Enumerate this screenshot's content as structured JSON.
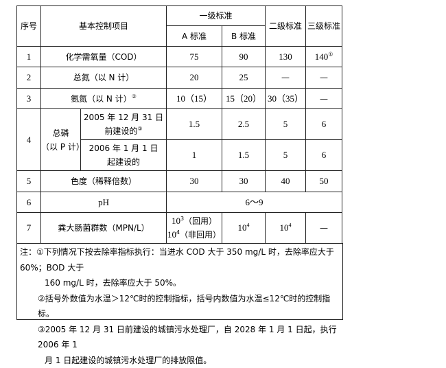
{
  "header": {
    "seq": "序号",
    "item": "基本控制项目",
    "grade1": "一级标准",
    "grade1a": "A 标准",
    "grade1b": "B 标准",
    "grade2": "二级标准",
    "grade3": "三级标准"
  },
  "rows": [
    {
      "seq": "1",
      "item": "化学需氧量（COD）",
      "a": "75",
      "b": "90",
      "g2": "130",
      "g3": "140",
      "g3_note": "①"
    },
    {
      "seq": "2",
      "item": "总氮（以 N 计）",
      "a": "20",
      "b": "25",
      "g2": "—",
      "g3": "—"
    },
    {
      "seq": "3",
      "item": "氨氮（以 N 计）",
      "item_note": "②",
      "a": "10（15）",
      "b": "15（20）",
      "g2": "30（35）",
      "g3": "—"
    },
    {
      "seq": "4",
      "item": "总磷",
      "item2": "（以 P 计）",
      "sub": [
        {
          "line1": "2005 年 12 月 31 日",
          "line2": "前建设的",
          "note": "③",
          "a": "1.5",
          "b": "2.5",
          "g2": "5",
          "g3": "6"
        },
        {
          "line1": "2006 年 1 月 1 日",
          "line2": "起建设的",
          "a": "1",
          "b": "1.5",
          "g2": "5",
          "g3": "6"
        }
      ]
    },
    {
      "seq": "5",
      "item": "色度（稀释倍数）",
      "a": "30",
      "b": "30",
      "g2": "40",
      "g3": "50"
    },
    {
      "seq": "6",
      "item": "pH",
      "all": "6～9"
    },
    {
      "seq": "7",
      "item": "粪大肠菌群数（MPN/L）",
      "a1_base": "10",
      "a1_exp": "3",
      "a1_text": "（回用）",
      "a2_base": "10",
      "a2_exp": "4",
      "a2_text": "（非回用）",
      "b_base": "10",
      "b_exp": "4",
      "g2_base": "10",
      "g2_exp": "4",
      "g3": "—"
    }
  ],
  "notes": {
    "n1a": "注：①下列情况下按去除率指标执行：当进水 COD 大于 350 mg/L 时，去除率应大于 60%；BOD 大于",
    "n1b": "160 mg/L 时，去除率应大于 50%。",
    "n2": "②括号外数值为水温＞12℃时的控制指标，括号内数值为水温≤12℃时的控制指标。",
    "n3a": "③2005 年 12 月 31 日前建设的城镇污水处理厂，自 2028 年 1 月 1 日起，执行 2006 年 1",
    "n3b": "月 1 日起建设的城镇污水处理厂的排放限值。"
  }
}
